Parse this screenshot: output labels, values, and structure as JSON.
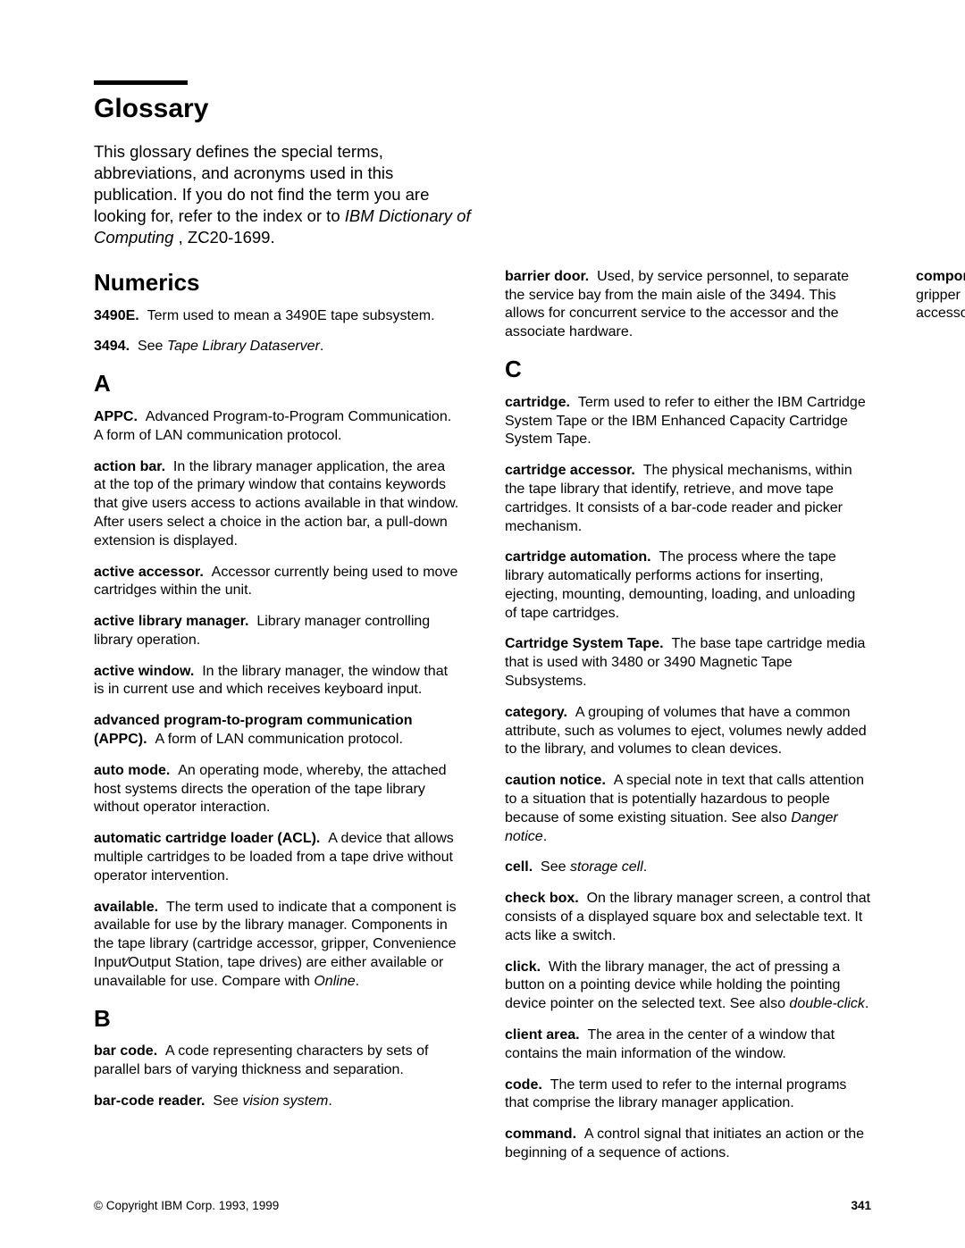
{
  "title": "Glossary",
  "intro_parts": {
    "p1": "This glossary defines the special terms, abbreviations, and acronyms used in this publication. If you do not find the term you are looking for, refer to the index or to ",
    "ital": "IBM Dictionary of Computing",
    "p2": " , ZC20-1699."
  },
  "sections": {
    "num": "Numerics",
    "a": "A",
    "b": "B",
    "c": "C"
  },
  "entries": {
    "e3490e_t": "3490E.",
    "e3490e_d": "Term used to mean a 3490E tape subsystem.",
    "e3494_t": "3494.",
    "e3494_d1": "See ",
    "e3494_i": "Tape Library Dataserver",
    "e3494_d2": ".",
    "appc_t": "APPC.",
    "appc_d": "Advanced Program-to-Program Communication. A form of LAN communication protocol.",
    "actionbar_t": "action bar.",
    "actionbar_d": "In the library manager application, the area at the top of the primary window that contains keywords that give users access to actions available in that window. After users select a choice in the action bar, a pull-down extension is displayed.",
    "activeacc_t": "active accessor.",
    "activeacc_d": "Accessor currently being used to move cartridges within the unit.",
    "activelib_t": "active library manager.",
    "activelib_d": "Library manager controlling library operation.",
    "activewin_t": "active window.",
    "activewin_d": "In the library manager, the window that is in current use and which receives keyboard input.",
    "advppc_t": "advanced program-to-program communication (APPC).",
    "advppc_d": "A form of LAN communication protocol.",
    "automode_t": "auto mode.",
    "automode_d": "An operating mode, whereby, the attached host systems directs the operation of the tape library without operator interaction.",
    "acl_t": "automatic cartridge loader (ACL).",
    "acl_d": "A device that allows multiple cartridges to be loaded from a tape drive without operator intervention.",
    "avail_t": "available.",
    "avail_d1": "The term used to indicate that a component is available for use by the library manager. Components in the tape library (cartridge accessor, gripper, Convenience Input⁄Output Station, tape drives) are either available or unavailable for use. Compare with ",
    "avail_i": "Online",
    "avail_d2": ".",
    "barcode_t": "bar code.",
    "barcode_d": "A code representing characters by sets of parallel bars of varying thickness and separation.",
    "barreader_t": "bar-code reader.",
    "barreader_d1": "See ",
    "barreader_i": "vision system",
    "barreader_d2": ".",
    "barrier_t": "barrier door.",
    "barrier_d": "Used, by service personnel, to separate the service bay from the main aisle of the 3494. This allows for concurrent service to the accessor and the associate hardware.",
    "cart_t": "cartridge.",
    "cart_d": "Term used to refer to either the IBM Cartridge System Tape or the IBM Enhanced Capacity Cartridge System Tape.",
    "cartacc_t": "cartridge accessor.",
    "cartacc_d": "The physical mechanisms, within the tape library that identify, retrieve, and move tape cartridges. It consists of a bar-code reader and picker mechanism.",
    "cartauto_t": "cartridge automation.",
    "cartauto_d": "The process where the tape library automatically performs actions for inserting, ejecting, mounting, demounting, loading, and unloading of tape cartridges.",
    "cst_t": "Cartridge System Tape.",
    "cst_d": "The base tape cartridge media that is used with 3480 or 3490 Magnetic Tape Subsystems.",
    "category_t": "category.",
    "category_d": "A grouping of volumes that have a common attribute, such as volumes to eject, volumes newly added to the library, and volumes to clean devices.",
    "caution_t": "caution notice.",
    "caution_d1": "A special note in text that calls attention to a situation that is potentially hazardous to people because of some existing situation. See also ",
    "caution_i": "Danger notice",
    "caution_d2": ".",
    "cell_t": "cell.",
    "cell_d1": "See ",
    "cell_i": "storage cell",
    "cell_d2": ".",
    "checkbox_t": "check box.",
    "checkbox_d": "On the library manager screen, a control that consists of a displayed square box and selectable text. It acts like a switch.",
    "click_t": "click.",
    "click_d1": "With the library manager, the act of pressing a button on a pointing device while holding the pointing device pointer on the selected text. See also ",
    "click_i": "double-click",
    "click_d2": ".",
    "clientarea_t": "client area.",
    "clientarea_d": "The area in the center of a window that contains the main information of the window.",
    "code_t": "code.",
    "code_d": "The term used to refer to the internal programs that comprise the library manager application.",
    "command_t": "command.",
    "command_d": "A control signal that initiates an action or the beginning of a sequence of actions.",
    "component_t": "component.",
    "component_d": "A part of a functional unit; for example, the gripper mechanism is a component of the cartridge accessor."
  },
  "footer": {
    "copyright": "© Copyright IBM Corp. 1993, 1999",
    "page": "341"
  }
}
